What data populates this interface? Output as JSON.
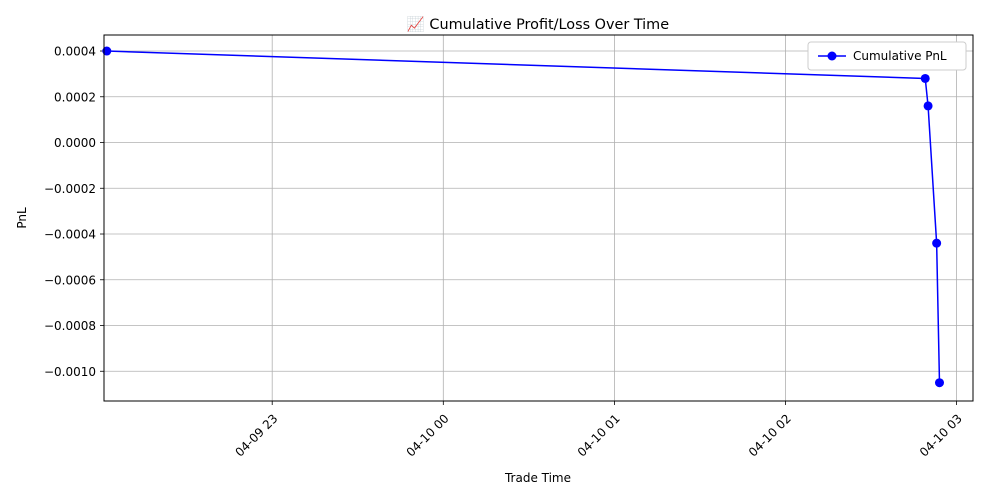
{
  "chart_data": {
    "type": "line",
    "title": "📈 Cumulative Profit/Loss Over Time",
    "xlabel": "Trade Time",
    "ylabel": "PnL",
    "x_tick_labels": [
      "04-09 23",
      "04-10 00",
      "04-10 01",
      "04-10 02",
      "04-10 03"
    ],
    "y_tick_labels": [
      "0.0004",
      "0.0002",
      "0.0000",
      "−0.0002",
      "−0.0004",
      "−0.0006",
      "−0.0008",
      "−0.0010"
    ],
    "ylim": [
      -0.00113,
      0.00047
    ],
    "grid": true,
    "legend_position": "top-right",
    "series": [
      {
        "name": "Cumulative PnL",
        "color": "#0000ff",
        "marker": "circle",
        "x": [
          "2025-04-09 22:02",
          "2025-04-10 02:49",
          "2025-04-10 02:50",
          "2025-04-10 02:53",
          "2025-04-10 02:54"
        ],
        "y": [
          0.0004,
          0.00028,
          0.00016,
          -0.00044,
          -0.00105
        ]
      }
    ]
  }
}
